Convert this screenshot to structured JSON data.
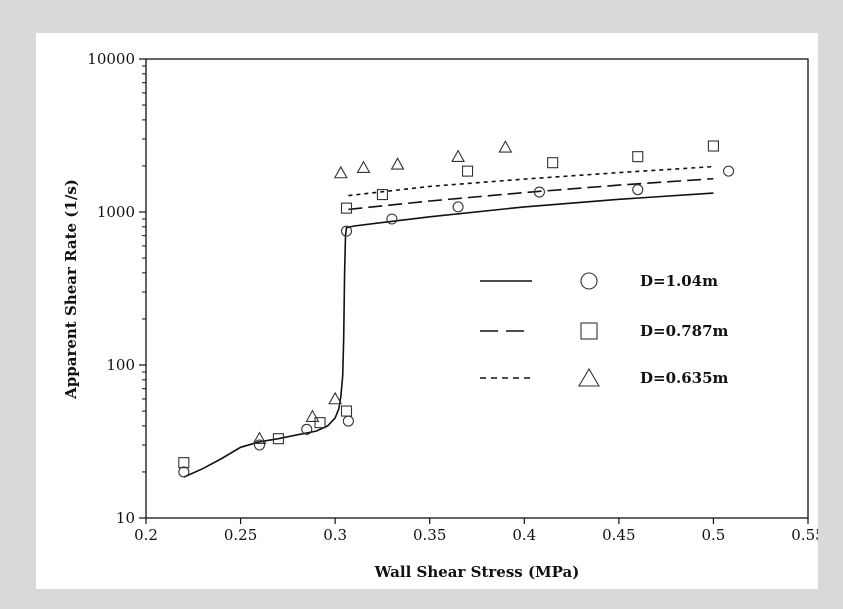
{
  "chart_data": {
    "type": "scatter",
    "xlabel": "Wall Shear Stress (MPa)",
    "ylabel": "Apparent Shear Rate (1/s)",
    "xlim": [
      0.2,
      0.55
    ],
    "ylim": [
      10,
      10000
    ],
    "yscale": "log",
    "x_ticks": [
      "0.2",
      "0.25",
      "0.3",
      "0.35",
      "0.4",
      "0.45",
      "0.5",
      "0.55"
    ],
    "y_ticks": [
      "10",
      "100",
      "1000",
      "10000"
    ],
    "legend_position": "center-right",
    "grid": false,
    "series": [
      {
        "name": "D=1.04m",
        "marker": "circle",
        "line_style": "solid",
        "points": [
          [
            0.22,
            20
          ],
          [
            0.26,
            30
          ],
          [
            0.285,
            38
          ],
          [
            0.306,
            750
          ],
          [
            0.307,
            43
          ],
          [
            0.33,
            900
          ],
          [
            0.365,
            1080
          ],
          [
            0.408,
            1350
          ],
          [
            0.46,
            1400
          ],
          [
            0.508,
            1850
          ]
        ],
        "curve": [
          [
            0.22,
            18.5
          ],
          [
            0.23,
            21
          ],
          [
            0.24,
            24.5
          ],
          [
            0.25,
            29
          ],
          [
            0.26,
            31.5
          ],
          [
            0.27,
            33
          ],
          [
            0.28,
            35
          ],
          [
            0.29,
            37
          ],
          [
            0.296,
            40
          ],
          [
            0.3,
            45
          ],
          [
            0.302,
            52
          ],
          [
            0.303,
            62
          ],
          [
            0.304,
            85
          ],
          [
            0.3045,
            150
          ],
          [
            0.305,
            400
          ],
          [
            0.3055,
            700
          ],
          [
            0.306,
            790
          ],
          [
            0.31,
            810
          ],
          [
            0.35,
            930
          ],
          [
            0.4,
            1080
          ],
          [
            0.45,
            1210
          ],
          [
            0.5,
            1330
          ]
        ]
      },
      {
        "name": "D=0.787m",
        "marker": "square",
        "line_style": "long-dash",
        "points": [
          [
            0.22,
            23
          ],
          [
            0.27,
            33
          ],
          [
            0.292,
            42
          ],
          [
            0.306,
            1060
          ],
          [
            0.306,
            50
          ],
          [
            0.325,
            1300
          ],
          [
            0.37,
            1850
          ],
          [
            0.415,
            2100
          ],
          [
            0.46,
            2300
          ],
          [
            0.5,
            2700
          ]
        ],
        "curve": [
          [
            0.307,
            1040
          ],
          [
            0.35,
            1180
          ],
          [
            0.4,
            1340
          ],
          [
            0.45,
            1500
          ],
          [
            0.5,
            1650
          ]
        ]
      },
      {
        "name": "D=0.635m",
        "marker": "triangle",
        "line_style": "short-dash",
        "points": [
          [
            0.26,
            33
          ],
          [
            0.288,
            46
          ],
          [
            0.3,
            60
          ],
          [
            0.303,
            1800
          ],
          [
            0.315,
            1950
          ],
          [
            0.333,
            2050
          ],
          [
            0.365,
            2300
          ],
          [
            0.39,
            2650
          ]
        ],
        "curve": [
          [
            0.307,
            1280
          ],
          [
            0.35,
            1470
          ],
          [
            0.4,
            1640
          ],
          [
            0.45,
            1810
          ],
          [
            0.5,
            1980
          ]
        ]
      }
    ]
  }
}
